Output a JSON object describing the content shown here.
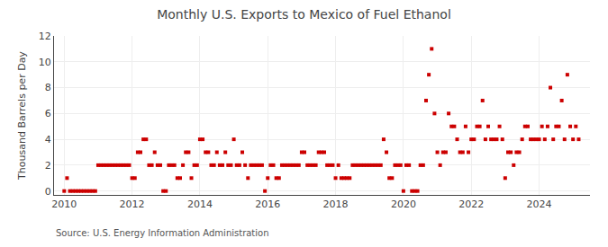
{
  "chart_data": {
    "type": "scatter",
    "title": "Monthly U.S. Exports to Mexico of Fuel Ethanol",
    "ylabel": "Thousand Barrels per Day",
    "annotations": [
      "Source: U.S. Energy Information Administration"
    ],
    "color": "#cc0000",
    "marker": "square",
    "grid": true,
    "xlim": [
      2009.7,
      2025.5
    ],
    "xticks": [
      2010,
      2012,
      2014,
      2016,
      2018,
      2020,
      2022,
      2024
    ],
    "ylim": [
      -0.3,
      12
    ],
    "yticks": [
      0,
      2,
      4,
      6,
      8,
      10,
      12
    ],
    "x": [
      2010.0,
      2010.083,
      2010.167,
      2010.25,
      2010.333,
      2010.417,
      2010.5,
      2010.583,
      2010.667,
      2010.75,
      2010.833,
      2010.917,
      2011.0,
      2011.083,
      2011.167,
      2011.25,
      2011.333,
      2011.417,
      2011.5,
      2011.583,
      2011.667,
      2011.75,
      2011.833,
      2011.917,
      2012.0,
      2012.083,
      2012.167,
      2012.25,
      2012.333,
      2012.417,
      2012.5,
      2012.583,
      2012.667,
      2012.75,
      2012.833,
      2012.917,
      2013.0,
      2013.083,
      2013.167,
      2013.25,
      2013.333,
      2013.417,
      2013.5,
      2013.583,
      2013.667,
      2013.75,
      2013.833,
      2013.917,
      2014.0,
      2014.083,
      2014.167,
      2014.25,
      2014.333,
      2014.417,
      2014.5,
      2014.583,
      2014.667,
      2014.75,
      2014.833,
      2014.917,
      2015.0,
      2015.083,
      2015.167,
      2015.25,
      2015.333,
      2015.417,
      2015.5,
      2015.583,
      2015.667,
      2015.75,
      2015.833,
      2015.917,
      2016.0,
      2016.083,
      2016.167,
      2016.25,
      2016.333,
      2016.417,
      2016.5,
      2016.583,
      2016.667,
      2016.75,
      2016.833,
      2016.917,
      2017.0,
      2017.083,
      2017.167,
      2017.25,
      2017.333,
      2017.417,
      2017.5,
      2017.583,
      2017.667,
      2017.75,
      2017.833,
      2017.917,
      2018.0,
      2018.083,
      2018.167,
      2018.25,
      2018.333,
      2018.417,
      2018.5,
      2018.583,
      2018.667,
      2018.75,
      2018.833,
      2018.917,
      2019.0,
      2019.083,
      2019.167,
      2019.25,
      2019.333,
      2019.417,
      2019.5,
      2019.583,
      2019.667,
      2019.75,
      2019.833,
      2019.917,
      2020.0,
      2020.083,
      2020.167,
      2020.25,
      2020.333,
      2020.417,
      2020.5,
      2020.583,
      2020.667,
      2020.75,
      2020.833,
      2020.917,
      2021.0,
      2021.083,
      2021.167,
      2021.25,
      2021.333,
      2021.417,
      2021.5,
      2021.583,
      2021.667,
      2021.75,
      2021.833,
      2021.917,
      2022.0,
      2022.083,
      2022.167,
      2022.25,
      2022.333,
      2022.417,
      2022.5,
      2022.583,
      2022.667,
      2022.75,
      2022.833,
      2022.917,
      2023.0,
      2023.083,
      2023.167,
      2023.25,
      2023.333,
      2023.417,
      2023.5,
      2023.583,
      2023.667,
      2023.75,
      2023.833,
      2023.917,
      2024.0,
      2024.083,
      2024.167,
      2024.25,
      2024.333,
      2024.417,
      2024.5,
      2024.583,
      2024.667,
      2024.75,
      2024.833,
      2024.917,
      2025.0,
      2025.083,
      2025.167
    ],
    "values": [
      0.0,
      1.0,
      0.0,
      0.0,
      0.0,
      0.0,
      0.0,
      0.0,
      0.0,
      0.0,
      0.0,
      0.0,
      2.0,
      2.0,
      2.0,
      2.0,
      2.0,
      2.0,
      2.0,
      2.0,
      2.0,
      2.0,
      2.0,
      2.0,
      1.0,
      1.0,
      3.0,
      3.0,
      4.0,
      4.0,
      2.0,
      2.0,
      3.0,
      2.0,
      2.0,
      0.0,
      0.0,
      2.0,
      2.0,
      2.0,
      1.0,
      1.0,
      2.0,
      3.0,
      3.0,
      1.0,
      2.0,
      2.0,
      4.0,
      4.0,
      3.0,
      3.0,
      2.0,
      2.0,
      3.0,
      2.0,
      2.0,
      3.0,
      2.0,
      2.0,
      4.0,
      2.0,
      2.0,
      3.0,
      2.0,
      1.0,
      2.0,
      2.0,
      2.0,
      2.0,
      2.0,
      0.0,
      1.0,
      2.0,
      2.0,
      1.0,
      1.0,
      2.0,
      2.0,
      2.0,
      2.0,
      2.0,
      2.0,
      2.0,
      3.0,
      3.0,
      2.0,
      2.0,
      2.0,
      2.0,
      3.0,
      3.0,
      3.0,
      2.0,
      2.0,
      2.0,
      1.0,
      2.0,
      1.0,
      1.0,
      1.0,
      1.0,
      2.0,
      2.0,
      2.0,
      2.0,
      2.0,
      2.0,
      2.0,
      2.0,
      2.0,
      2.0,
      2.0,
      4.0,
      3.0,
      1.0,
      1.0,
      2.0,
      2.0,
      2.0,
      0.0,
      2.0,
      2.0,
      0.0,
      0.0,
      0.0,
      2.0,
      2.0,
      7.0,
      9.0,
      11.0,
      6.0,
      3.0,
      2.0,
      3.0,
      3.0,
      6.0,
      5.0,
      5.0,
      4.0,
      3.0,
      3.0,
      5.0,
      3.0,
      4.0,
      4.0,
      5.0,
      5.0,
      7.0,
      4.0,
      5.0,
      4.0,
      4.0,
      4.0,
      5.0,
      4.0,
      1.0,
      3.0,
      3.0,
      2.0,
      3.0,
      3.0,
      4.0,
      5.0,
      5.0,
      4.0,
      4.0,
      4.0,
      4.0,
      5.0,
      4.0,
      5.0,
      8.0,
      4.0,
      5.0,
      5.0,
      7.0,
      4.0,
      9.0,
      5.0,
      4.0,
      5.0,
      4.0
    ]
  }
}
